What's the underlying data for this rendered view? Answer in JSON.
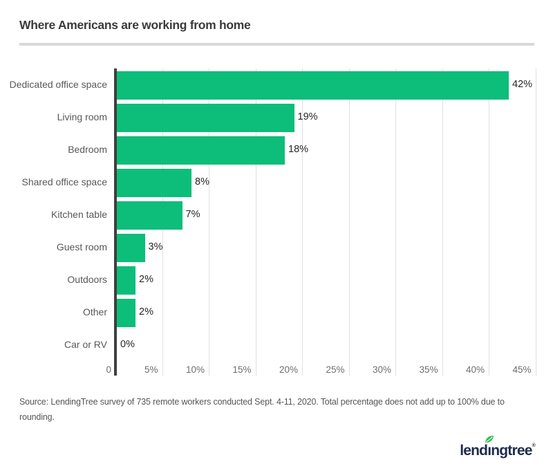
{
  "page": {
    "title": "Where Americans are working from home",
    "source_text": "Source: LendingTree survey of 735 remote workers conducted Sept. 4-11, 2020. Total percentage does not add up to 100% due to rounding.",
    "logo": {
      "text_before_leaf": "lend",
      "dotless_i": "ı",
      "text_after_leaf": "ngtree",
      "registered": "®",
      "text_color": "#1e2c49",
      "leaf_color": "#2fbf4f"
    }
  },
  "chart_data": {
    "type": "bar",
    "orientation": "horizontal",
    "title": "Where Americans are working from home",
    "categories": [
      "Dedicated office space",
      "Living room",
      "Bedroom",
      "Shared office space",
      "Kitchen table",
      "Guest room",
      "Outdoors",
      "Other",
      "Car or RV"
    ],
    "values": [
      42,
      19,
      18,
      8,
      7,
      3,
      2,
      2,
      0
    ],
    "value_labels": [
      "42%",
      "19%",
      "18%",
      "8%",
      "7%",
      "3%",
      "2%",
      "2%",
      "0%"
    ],
    "x_ticks": [
      {
        "label": "0",
        "value": 0
      },
      {
        "label": "5%",
        "value": 5
      },
      {
        "label": "10%",
        "value": 10
      },
      {
        "label": "15%",
        "value": 15
      },
      {
        "label": "20%",
        "value": 20
      },
      {
        "label": "25%",
        "value": 25
      },
      {
        "label": "30%",
        "value": 30
      },
      {
        "label": "35%",
        "value": 35
      },
      {
        "label": "40%",
        "value": 40
      },
      {
        "label": "45%",
        "value": 45
      }
    ],
    "xlim": [
      0,
      45
    ],
    "xlabel": "",
    "ylabel": "",
    "grid": true,
    "legend": false,
    "bar_color": "#0dbd7a",
    "gridline_color": "#e0e0e0",
    "axis_color": "#3f3f3f",
    "category_label_color": "#575757",
    "value_label_color": "#262626",
    "tick_label_color": "#6e6e6e"
  }
}
